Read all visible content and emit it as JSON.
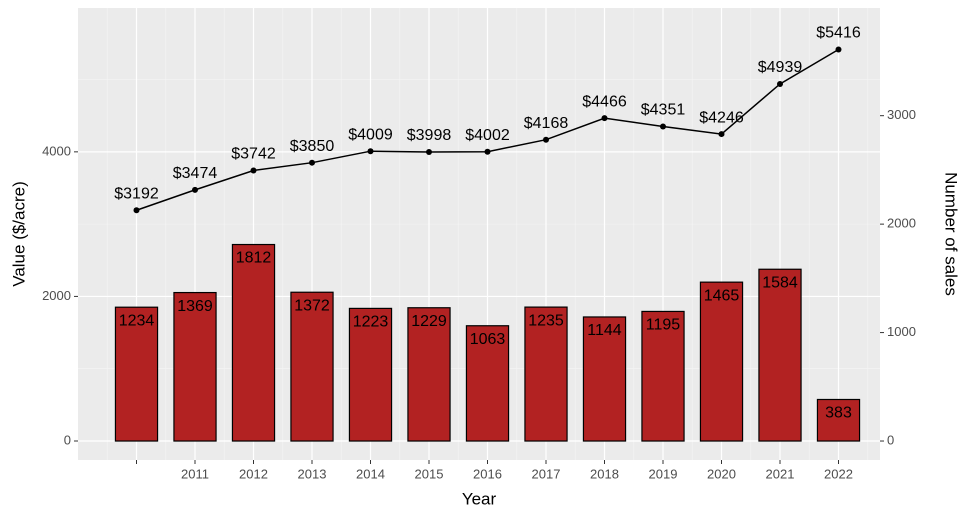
{
  "chart_data": {
    "type": "bar+line",
    "x_label": "Year",
    "y_label": "Value ($/acre)",
    "y2_label": "Number of sales",
    "categories": [
      null,
      "2011",
      "2012",
      "2013",
      "2014",
      "2015",
      "2016",
      "2017",
      "2018",
      "2019",
      "2020",
      "2021",
      "2022"
    ],
    "series": [
      {
        "type": "bar",
        "axis": "y2",
        "color": "#b22222",
        "values": [
          1234,
          1369,
          1812,
          1372,
          1223,
          1229,
          1063,
          1235,
          1144,
          1195,
          1465,
          1584,
          383
        ]
      },
      {
        "type": "line",
        "color": "#000000",
        "values": [
          3192,
          3474,
          3742,
          3850,
          4009,
          3998,
          4002,
          4168,
          4466,
          4351,
          4246,
          4939,
          5416
        ],
        "value_labels": [
          "$3192",
          "$3474",
          "$3742",
          "$3850",
          "$4009",
          "$3998",
          "$4002",
          "$4168",
          "$4466",
          "$4351",
          "$4246",
          "$4939",
          "$5416"
        ]
      }
    ],
    "ylim": [
      -263,
      5990
    ],
    "yticks": [
      0,
      2000,
      4000
    ],
    "y2lim": [
      -175,
      3993
    ],
    "y2ticks": [
      0,
      1000,
      2000,
      3000
    ],
    "grid": true
  }
}
